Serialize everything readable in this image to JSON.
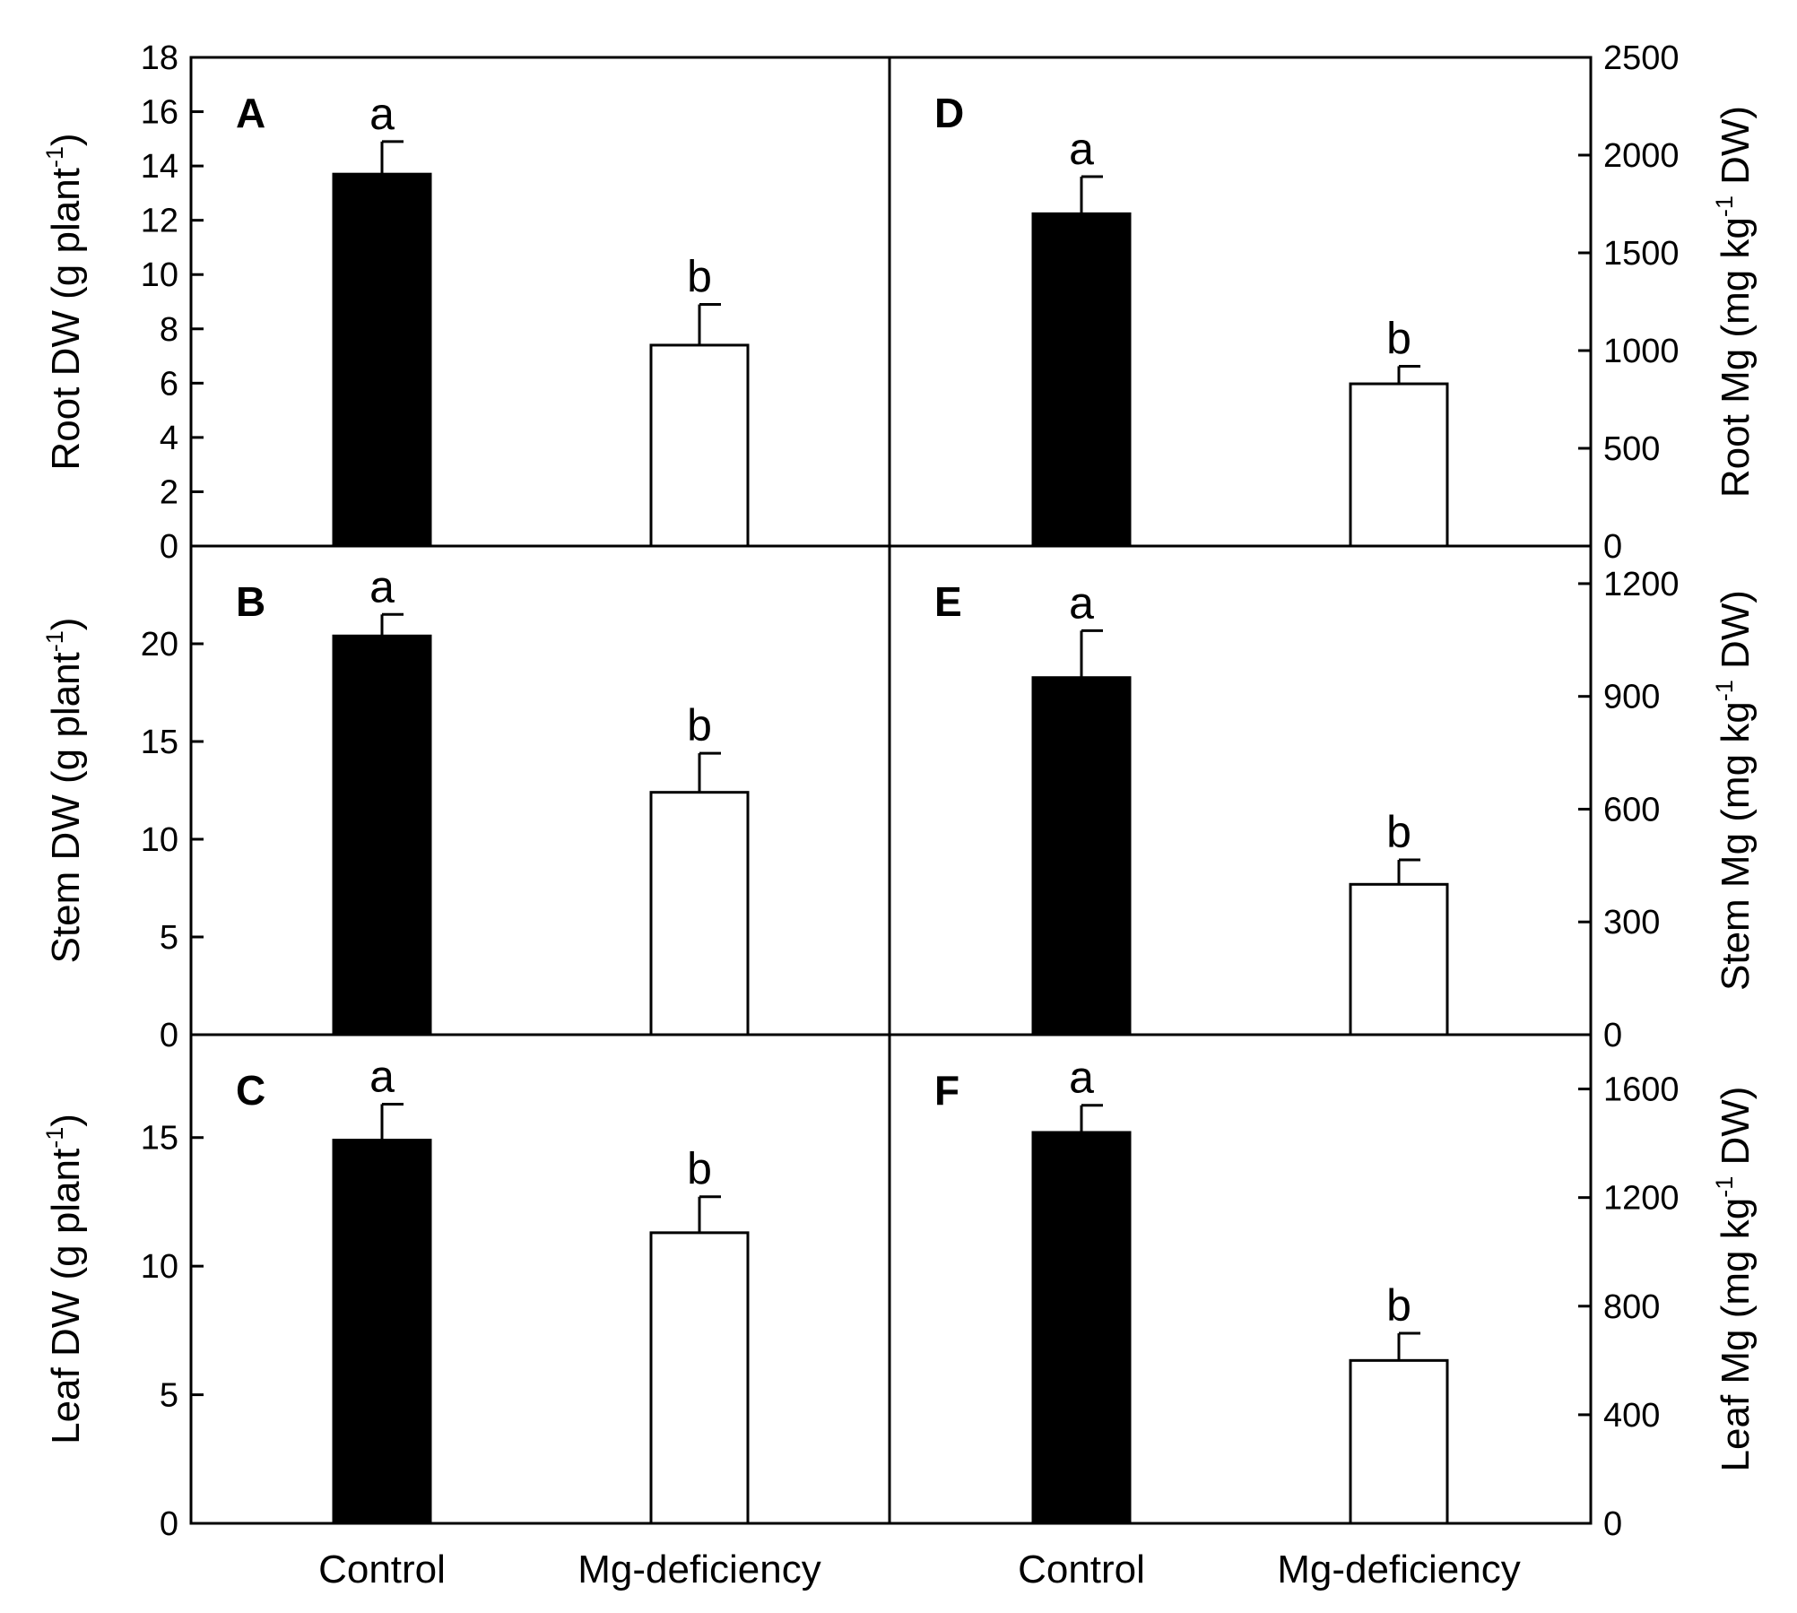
{
  "colors": {
    "control": "#000000",
    "mg_deficiency": "#ffffff",
    "stroke": "#000000"
  },
  "chart_data": [
    {
      "panel": "A",
      "type": "bar",
      "x_label_key": "Control / Mg-deficiency",
      "categories": [
        "Control",
        "Mg-deficiency"
      ],
      "values": [
        13.7,
        7.4
      ],
      "errors": [
        1.2,
        1.5
      ],
      "letters": [
        "a",
        "b"
      ],
      "ylabel": "Root DW (g plant",
      "ylabel_sup": "-1",
      "ylabel_after": ")",
      "ylim": [
        0,
        18
      ],
      "yticks": [
        0,
        2,
        4,
        6,
        8,
        10,
        12,
        14,
        16,
        18
      ],
      "axis_side": "left",
      "grid": false
    },
    {
      "panel": "B",
      "type": "bar",
      "categories": [
        "Control",
        "Mg-deficiency"
      ],
      "values": [
        20.4,
        12.4
      ],
      "errors": [
        1.1,
        2.0
      ],
      "letters": [
        "a",
        "b"
      ],
      "ylabel": "Stem DW (g plant",
      "ylabel_sup": "-1",
      "ylabel_after": ")",
      "ylim": [
        0,
        25
      ],
      "yticks": [
        0,
        5,
        10,
        15,
        20
      ],
      "axis_side": "left",
      "grid": false
    },
    {
      "panel": "C",
      "type": "bar",
      "categories": [
        "Control",
        "Mg-deficiency"
      ],
      "values": [
        14.9,
        11.3
      ],
      "errors": [
        1.4,
        1.4
      ],
      "letters": [
        "a",
        "b"
      ],
      "ylabel": "Leaf DW (g plant",
      "ylabel_sup": "-1",
      "ylabel_after": ")",
      "ylim": [
        0,
        19
      ],
      "yticks": [
        0,
        5,
        10,
        15
      ],
      "axis_side": "left",
      "grid": false
    },
    {
      "panel": "D",
      "type": "bar",
      "categories": [
        "Control",
        "Mg-deficiency"
      ],
      "values": [
        1700,
        830
      ],
      "errors": [
        190,
        90
      ],
      "letters": [
        "a",
        "b"
      ],
      "ylabel": "Root Mg (mg kg",
      "ylabel_sup": "-1",
      "ylabel_after": " DW)",
      "ylim": [
        0,
        2500
      ],
      "yticks": [
        0,
        500,
        1000,
        1500,
        2000,
        2500
      ],
      "axis_side": "right",
      "grid": false
    },
    {
      "panel": "E",
      "type": "bar",
      "categories": [
        "Control",
        "Mg-deficiency"
      ],
      "values": [
        950,
        400
      ],
      "errors": [
        125,
        65
      ],
      "letters": [
        "a",
        "b"
      ],
      "ylabel": "Stem Mg (mg kg",
      "ylabel_sup": "-1",
      "ylabel_after": " DW)",
      "ylim": [
        0,
        1300
      ],
      "yticks": [
        0,
        300,
        600,
        900,
        1200
      ],
      "axis_side": "right",
      "grid": false
    },
    {
      "panel": "F",
      "type": "bar",
      "categories": [
        "Control",
        "Mg-deficiency"
      ],
      "values": [
        1440,
        600
      ],
      "errors": [
        100,
        100
      ],
      "letters": [
        "a",
        "b"
      ],
      "ylabel": "Leaf Mg (mg kg",
      "ylabel_sup": "-1",
      "ylabel_after": " DW)",
      "ylim": [
        0,
        1800
      ],
      "yticks": [
        0,
        400,
        800,
        1200,
        1600
      ],
      "axis_side": "right",
      "grid": false
    }
  ]
}
